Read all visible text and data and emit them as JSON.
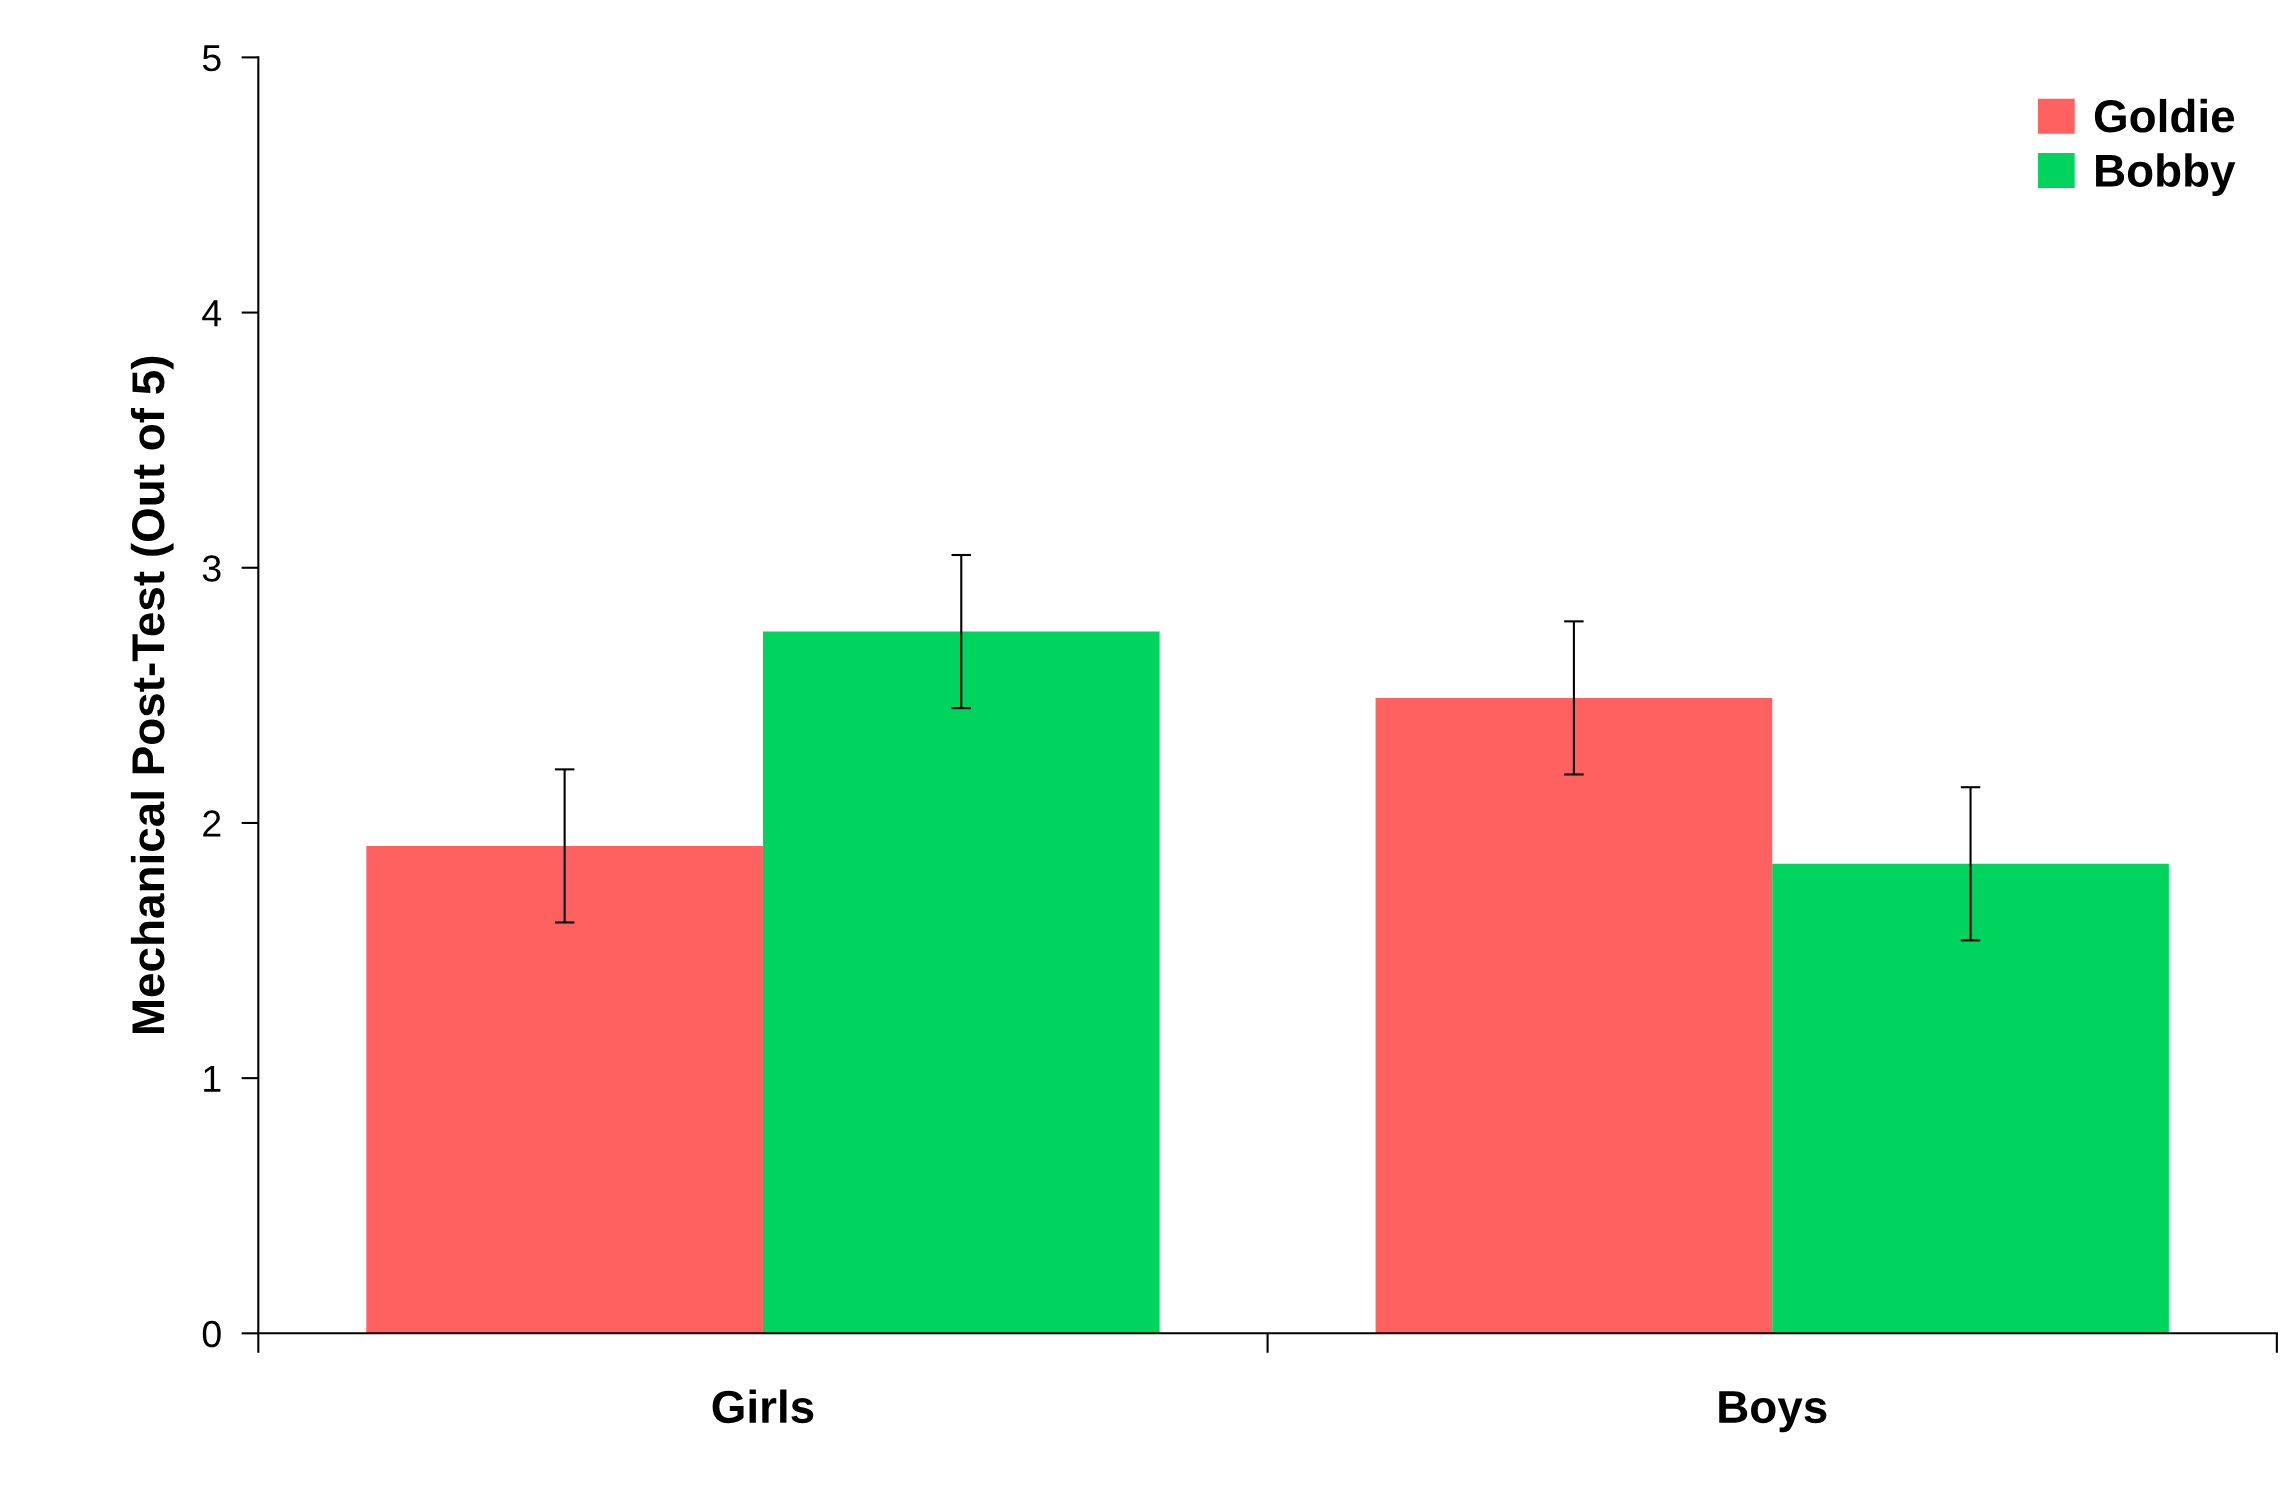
{
  "chart_data": {
    "type": "bar",
    "ylabel": "Mechanical Post-Test (Out of 5)",
    "categories": [
      "Girls",
      "Boys"
    ],
    "series": [
      {
        "name": "Goldie",
        "color": "#ff6161",
        "values": [
          1.91,
          2.49
        ],
        "errors": [
          0.3,
          0.3
        ]
      },
      {
        "name": "Bobby",
        "color": "#00d45f",
        "values": [
          2.75,
          1.84
        ],
        "errors": [
          0.3,
          0.3
        ]
      }
    ],
    "ylim": [
      0,
      5
    ],
    "yticks": [
      0,
      1,
      2,
      3,
      4,
      5
    ],
    "grid": false,
    "legend": "top right"
  }
}
